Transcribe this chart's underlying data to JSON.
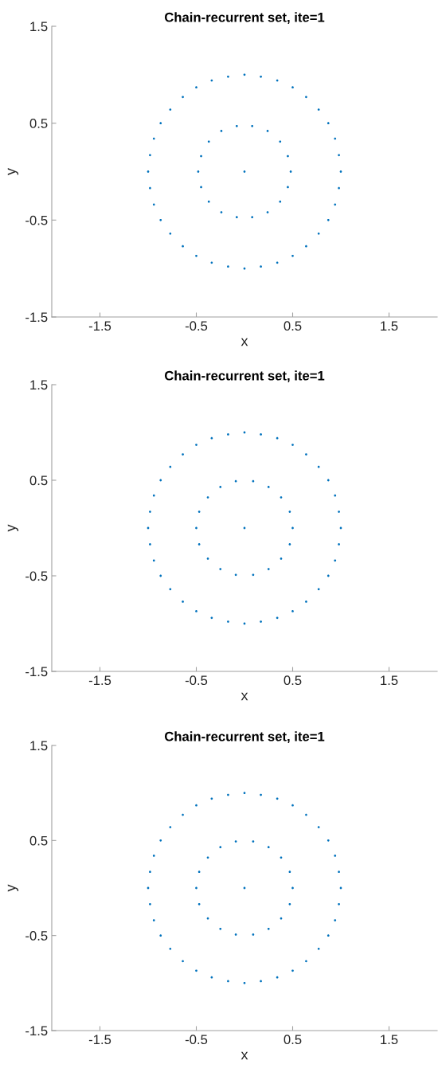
{
  "chart_data": [
    {
      "type": "scatter",
      "title": "Chain-recurrent set, ite=1",
      "xlabel": "x",
      "ylabel": "y",
      "xlim": [
        -2,
        2
      ],
      "ylim": [
        -1.5,
        1.5
      ],
      "xticks": [
        -1.5,
        -0.5,
        0.5,
        1.5
      ],
      "yticks": [
        -1.5,
        -0.5,
        0.5,
        1.5
      ],
      "grid": false,
      "series": [
        {
          "color": "#0072bd",
          "x": [
            1,
            0.98,
            0.94,
            0.87,
            0.77,
            0.64,
            0.5,
            0.34,
            0.17,
            0,
            -0.17,
            -0.34,
            -0.5,
            -0.64,
            -0.77,
            -0.87,
            -0.94,
            -0.98,
            -1,
            -0.98,
            -0.94,
            -0.87,
            -0.77,
            -0.64,
            -0.5,
            -0.34,
            -0.17,
            0,
            0.17,
            0.34,
            0.5,
            0.64,
            0.77,
            0.87,
            0.94,
            0.98
          ],
          "values": [
            0,
            0.17,
            0.34,
            0.5,
            0.64,
            0.77,
            0.87,
            0.94,
            0.98,
            1,
            0.98,
            0.94,
            0.87,
            0.77,
            0.64,
            0.5,
            0.34,
            0.17,
            0,
            -0.17,
            -0.34,
            -0.5,
            -0.64,
            -0.77,
            -0.87,
            -0.94,
            -0.98,
            -1,
            -0.98,
            -0.94,
            -0.87,
            -0.77,
            -0.64,
            -0.5,
            -0.34,
            -0.17
          ]
        },
        {
          "color": "#0072bd",
          "x": [
            0.48,
            0.45,
            0.37,
            0.24,
            0.08,
            -0.08,
            -0.24,
            -0.37,
            -0.45,
            -0.48,
            -0.45,
            -0.37,
            -0.24,
            -0.08,
            0.08,
            0.24,
            0.37,
            0.45
          ],
          "values": [
            0,
            0.16,
            0.31,
            0.42,
            0.47,
            0.47,
            0.42,
            0.31,
            0.16,
            0,
            -0.16,
            -0.31,
            -0.42,
            -0.47,
            -0.47,
            -0.42,
            -0.31,
            -0.16
          ]
        },
        {
          "color": "#0072bd",
          "x": [
            0
          ],
          "values": [
            0
          ]
        }
      ]
    },
    {
      "type": "scatter",
      "title": "Chain-recurrent set, ite=1",
      "xlabel": "x",
      "ylabel": "y",
      "xlim": [
        -2,
        2
      ],
      "ylim": [
        -1.5,
        1.5
      ],
      "xticks": [
        -1.5,
        -0.5,
        0.5,
        1.5
      ],
      "yticks": [
        -1.5,
        -0.5,
        0.5,
        1.5
      ],
      "grid": false,
      "series": [
        {
          "color": "#0072bd",
          "x": [
            1,
            0.98,
            0.94,
            0.87,
            0.77,
            0.64,
            0.5,
            0.34,
            0.17,
            0,
            -0.17,
            -0.34,
            -0.5,
            -0.64,
            -0.77,
            -0.87,
            -0.94,
            -0.98,
            -1,
            -0.98,
            -0.94,
            -0.87,
            -0.77,
            -0.64,
            -0.5,
            -0.34,
            -0.17,
            0,
            0.17,
            0.34,
            0.5,
            0.64,
            0.77,
            0.87,
            0.94,
            0.98
          ],
          "values": [
            0,
            0.17,
            0.34,
            0.5,
            0.64,
            0.77,
            0.87,
            0.94,
            0.98,
            1,
            0.98,
            0.94,
            0.87,
            0.77,
            0.64,
            0.5,
            0.34,
            0.17,
            0,
            -0.17,
            -0.34,
            -0.5,
            -0.64,
            -0.77,
            -0.87,
            -0.94,
            -0.98,
            -1,
            -0.98,
            -0.94,
            -0.87,
            -0.77,
            -0.64,
            -0.5,
            -0.34,
            -0.17
          ]
        },
        {
          "color": "#0072bd",
          "x": [
            0.5,
            0.47,
            0.38,
            0.25,
            0.09,
            -0.09,
            -0.25,
            -0.38,
            -0.47,
            -0.5,
            -0.47,
            -0.38,
            -0.25,
            -0.09,
            0.09,
            0.25,
            0.38,
            0.47
          ],
          "values": [
            0,
            0.17,
            0.32,
            0.43,
            0.49,
            0.49,
            0.43,
            0.32,
            0.17,
            0,
            -0.17,
            -0.32,
            -0.43,
            -0.49,
            -0.49,
            -0.43,
            -0.32,
            -0.17
          ]
        },
        {
          "color": "#0072bd",
          "x": [
            0
          ],
          "values": [
            0
          ]
        }
      ]
    },
    {
      "type": "scatter",
      "title": "Chain-recurrent set, ite=1",
      "xlabel": "x",
      "ylabel": "y",
      "xlim": [
        -2,
        2
      ],
      "ylim": [
        -1.5,
        1.5
      ],
      "xticks": [
        -1.5,
        -0.5,
        0.5,
        1.5
      ],
      "yticks": [
        -1.5,
        -0.5,
        0.5,
        1.5
      ],
      "grid": false,
      "series": [
        {
          "color": "#0072bd",
          "x": [
            1,
            0.98,
            0.94,
            0.87,
            0.77,
            0.64,
            0.5,
            0.34,
            0.17,
            0,
            -0.17,
            -0.34,
            -0.5,
            -0.64,
            -0.77,
            -0.87,
            -0.94,
            -0.98,
            -1,
            -0.98,
            -0.94,
            -0.87,
            -0.77,
            -0.64,
            -0.5,
            -0.34,
            -0.17,
            0,
            0.17,
            0.34,
            0.5,
            0.64,
            0.77,
            0.87,
            0.94,
            0.98
          ],
          "values": [
            0,
            0.17,
            0.34,
            0.5,
            0.64,
            0.77,
            0.87,
            0.94,
            0.98,
            1,
            0.98,
            0.94,
            0.87,
            0.77,
            0.64,
            0.5,
            0.34,
            0.17,
            0,
            -0.17,
            -0.34,
            -0.5,
            -0.64,
            -0.77,
            -0.87,
            -0.94,
            -0.98,
            -1,
            -0.98,
            -0.94,
            -0.87,
            -0.77,
            -0.64,
            -0.5,
            -0.34,
            -0.17
          ]
        },
        {
          "color": "#0072bd",
          "x": [
            0.5,
            0.47,
            0.38,
            0.25,
            0.09,
            -0.09,
            -0.25,
            -0.38,
            -0.47,
            -0.5,
            -0.47,
            -0.38,
            -0.25,
            -0.09,
            0.09,
            0.25,
            0.38,
            0.47
          ],
          "values": [
            0,
            0.17,
            0.32,
            0.43,
            0.49,
            0.49,
            0.43,
            0.32,
            0.17,
            0,
            -0.17,
            -0.32,
            -0.43,
            -0.49,
            -0.49,
            -0.43,
            -0.32,
            -0.17
          ]
        },
        {
          "color": "#0072bd",
          "x": [
            0
          ],
          "values": [
            0
          ]
        }
      ]
    }
  ]
}
